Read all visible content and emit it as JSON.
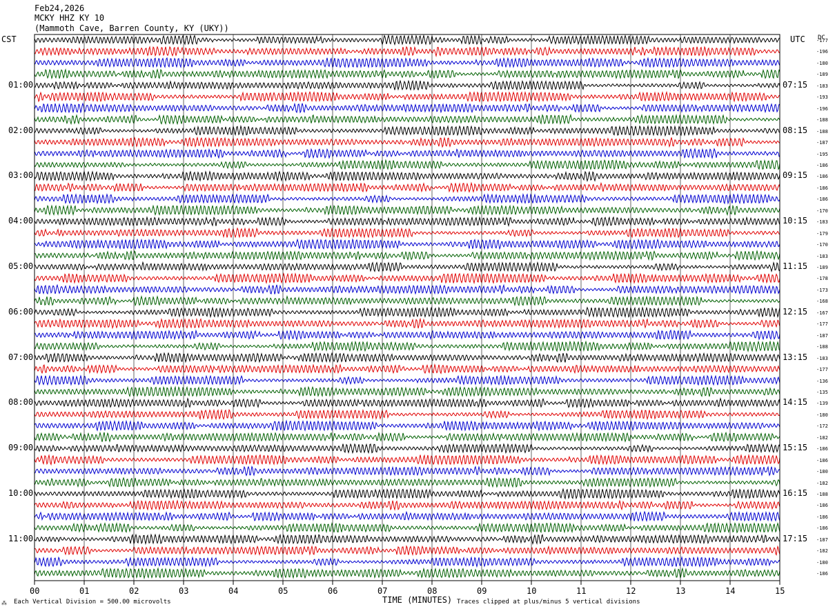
{
  "header": {
    "date": "Feb24,2026",
    "station": "MCKY HHZ KY 10",
    "location": "(Mammoth Cave, Barren County, KY (UKY))"
  },
  "axes": {
    "left_timezone": "CST",
    "right_timezone": "UTC",
    "dc_label": "DC",
    "x_label": "TIME (MINUTES)"
  },
  "footer": {
    "scale_note": "Each Vertical Division =  500.00 microvolts",
    "clip_note": "Traces clipped at plus/minus 5 vertical divisions"
  },
  "colors": {
    "trace_cycle": [
      "#000000",
      "#e00000",
      "#0000d0",
      "#006000"
    ],
    "grid": "#000000"
  },
  "chart_data": {
    "type": "line",
    "description_kind": "helicorder",
    "x": {
      "label": "TIME (MINUTES)",
      "range": [
        0,
        15
      ],
      "ticks": [
        "00",
        "01",
        "02",
        "03",
        "04",
        "05",
        "06",
        "07",
        "08",
        "09",
        "10",
        "11",
        "12",
        "13",
        "14",
        "15"
      ]
    },
    "left_hour_labels": [
      "01:00",
      "02:00",
      "03:00",
      "04:00",
      "05:00",
      "06:00",
      "07:00",
      "08:00",
      "09:00",
      "10:00",
      "11:00"
    ],
    "right_hour_labels": [
      "07:15",
      "08:15",
      "09:15",
      "10:15",
      "11:15",
      "12:15",
      "13:15",
      "14:15",
      "15:15",
      "16:15",
      "17:15"
    ],
    "dc_offsets": [
      "-177",
      "-196",
      "-180",
      "-189",
      "-183",
      "-193",
      "-196",
      "-188",
      "-188",
      "-187",
      "-195",
      "-186",
      "-186",
      "-186",
      "-186",
      "-170",
      "-183",
      "-179",
      "-170",
      "-183",
      "-189",
      "-178",
      "-173",
      "-168",
      "-167",
      "-177",
      "-187",
      "-188",
      "-183",
      "-177",
      "-136",
      "-135",
      "-139",
      "-180",
      "-172",
      "-182",
      "-186",
      "-186",
      "-180",
      "-182",
      "-188",
      "-186",
      "-186",
      "-186",
      "-187",
      "-182",
      "-180",
      "-186"
    ],
    "traces": 48,
    "minutes_per_trace": 15
  }
}
